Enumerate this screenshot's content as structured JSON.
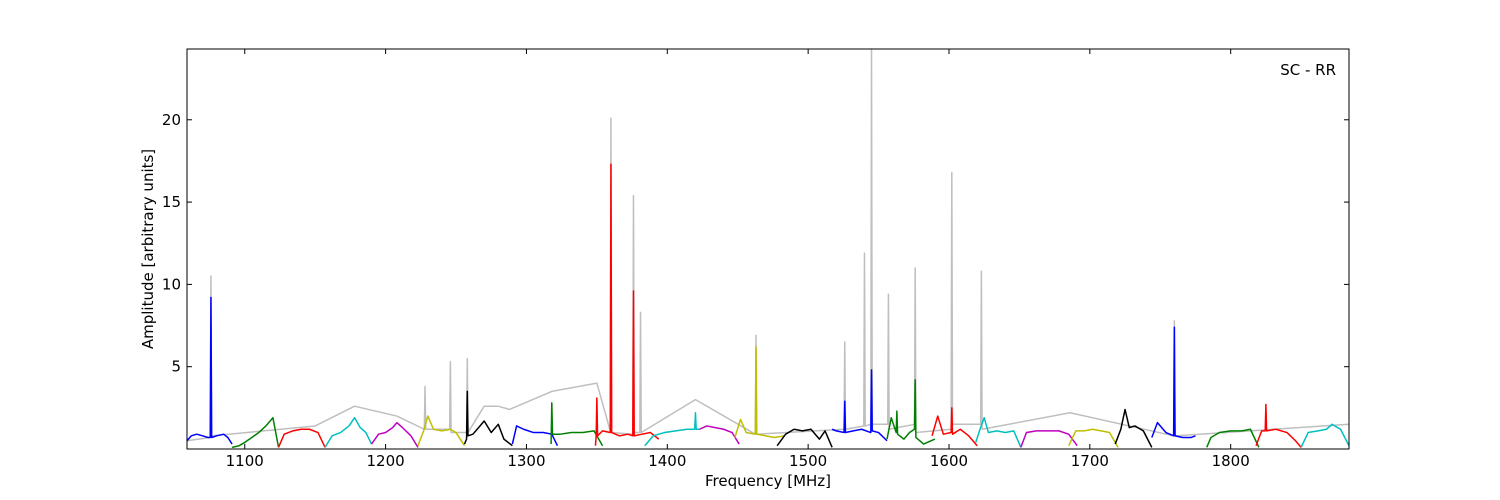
{
  "chart_data": {
    "type": "line",
    "annotation": "SC - RR",
    "x_label": "Frequency [MHz]",
    "y_label": "Amplitude [arbitrary units]",
    "xlim": [
      1059,
      1884
    ],
    "ylim": [
      0,
      24.3
    ],
    "xticks": [
      1100,
      1200,
      1300,
      1400,
      1500,
      1600,
      1700,
      1800
    ],
    "yticks": [
      5,
      10,
      15,
      20
    ],
    "series": [
      {
        "color": "#bfbfbf",
        "x": [
          1059,
          1075.5,
          1076,
          1076.5,
          1150,
          1178,
          1208,
          1227.5,
          1228,
          1228.5,
          1245.5,
          1246,
          1246.5,
          1257.5,
          1258,
          1258.5,
          1270,
          1280,
          1288,
          1318,
          1350,
          1359.5,
          1360,
          1360.5,
          1375.5,
          1376,
          1376.5,
          1380.5,
          1381,
          1381.5,
          1420,
          1462.5,
          1463,
          1463.5,
          1525.5,
          1526,
          1526.5,
          1539.5,
          1540,
          1540.5,
          1544.5,
          1545,
          1545.5,
          1556.5,
          1557,
          1557.5,
          1575.5,
          1576,
          1576.5,
          1601.5,
          1602,
          1602.5,
          1622.5,
          1623,
          1623.5,
          1686,
          1759.5,
          1760,
          1760.5,
          1884
        ],
        "values": [
          0.5,
          0.7,
          10.5,
          0.8,
          1.4,
          2.6,
          2.0,
          1.2,
          3.8,
          1.2,
          1.2,
          5.3,
          1.0,
          1.0,
          5.5,
          1.0,
          2.6,
          2.6,
          2.4,
          3.5,
          4.0,
          1.1,
          20.1,
          1.0,
          0.9,
          15.4,
          1.0,
          1.0,
          8.3,
          1.0,
          3.0,
          0.9,
          6.9,
          0.9,
          1.2,
          6.5,
          1.2,
          1.4,
          11.9,
          1.4,
          1.5,
          24.3,
          1.5,
          1.5,
          9.4,
          1.2,
          1.5,
          11.0,
          1.0,
          1.2,
          16.8,
          1.5,
          1.5,
          10.8,
          1.2,
          2.2,
          0.8,
          7.8,
          0.8,
          1.5
        ]
      },
      {
        "color": "#0000ff",
        "x": [
          1059,
          1062,
          1066,
          1070,
          1074,
          1075.5,
          1076,
          1076.5,
          1080,
          1085,
          1088,
          1091
        ],
        "values": [
          0.5,
          0.8,
          0.9,
          0.8,
          0.7,
          0.7,
          9.2,
          0.7,
          0.8,
          0.9,
          0.7,
          0.3
        ]
      },
      {
        "color": "#008000",
        "x": [
          1091,
          1096,
          1100,
          1105,
          1110,
          1115,
          1120,
          1124
        ],
        "values": [
          0.1,
          0.2,
          0.4,
          0.7,
          1.0,
          1.4,
          1.9,
          0.1
        ]
      },
      {
        "color": "#ff0000",
        "x": [
          1124,
          1128,
          1134,
          1140,
          1146,
          1152,
          1157
        ],
        "values": [
          0.1,
          0.9,
          1.1,
          1.2,
          1.2,
          1.0,
          0.1
        ]
      },
      {
        "color": "#00bfbf",
        "x": [
          1157,
          1162,
          1168,
          1174,
          1178,
          1182,
          1186,
          1190
        ],
        "values": [
          0.1,
          0.8,
          1.0,
          1.4,
          1.9,
          1.3,
          1.0,
          0.3
        ]
      },
      {
        "color": "#bf00bf",
        "x": [
          1190,
          1195,
          1200,
          1205,
          1208,
          1212,
          1218,
          1223
        ],
        "values": [
          0.3,
          0.9,
          1.0,
          1.3,
          1.6,
          1.3,
          0.8,
          0.1
        ]
      },
      {
        "color": "#bfbf00",
        "x": [
          1223,
          1227,
          1230,
          1234,
          1240,
          1246,
          1250,
          1256
        ],
        "values": [
          0.2,
          1.1,
          2.0,
          1.2,
          1.1,
          1.2,
          1.0,
          0.2
        ]
      },
      {
        "color": "#000000",
        "x": [
          1256,
          1257.5,
          1258,
          1258.5,
          1262,
          1266,
          1270,
          1275,
          1280,
          1284,
          1290
        ],
        "values": [
          0.3,
          0.6,
          3.5,
          0.8,
          0.9,
          1.3,
          1.7,
          1.0,
          1.5,
          0.6,
          0.2
        ]
      },
      {
        "color": "#0000ff",
        "x": [
          1290,
          1293,
          1298,
          1305,
          1312,
          1318,
          1322
        ],
        "values": [
          0.3,
          1.4,
          1.2,
          1.0,
          1.0,
          0.9,
          0.2
        ]
      },
      {
        "color": "#008000",
        "x": [
          1317.5,
          1318,
          1318.5,
          1324,
          1332,
          1340,
          1348,
          1354
        ],
        "values": [
          0.3,
          2.8,
          0.9,
          0.9,
          1.0,
          1.0,
          1.1,
          0.2
        ]
      },
      {
        "color": "#ff0000",
        "x": [
          1349,
          1349.5,
          1350,
          1350.5,
          1354,
          1359.5,
          1360,
          1360.5,
          1366,
          1372,
          1375.5,
          1376,
          1376.5,
          1382,
          1388,
          1394
        ],
        "values": [
          0.2,
          0.8,
          3.1,
          0.8,
          1.1,
          1.0,
          17.3,
          1.0,
          0.8,
          0.9,
          0.8,
          9.6,
          0.8,
          0.9,
          1.0,
          0.6
        ]
      },
      {
        "color": "#00bfbf",
        "x": [
          1384,
          1390,
          1398,
          1406,
          1414,
          1419.5,
          1420,
          1420.5,
          1423
        ],
        "values": [
          0.2,
          0.8,
          1.0,
          1.1,
          1.2,
          1.2,
          2.2,
          1.2,
          1.2
        ]
      },
      {
        "color": "#bf00bf",
        "x": [
          1423,
          1428,
          1434,
          1440,
          1446,
          1451
        ],
        "values": [
          1.2,
          1.4,
          1.3,
          1.2,
          1.0,
          0.3
        ]
      },
      {
        "color": "#bfbf00",
        "x": [
          1448,
          1452,
          1456,
          1462.5,
          1463,
          1463.5,
          1470,
          1476,
          1483
        ],
        "values": [
          0.7,
          1.8,
          1.0,
          0.9,
          6.2,
          0.9,
          0.8,
          0.7,
          0.8
        ]
      },
      {
        "color": "#000000",
        "x": [
          1478,
          1484,
          1490,
          1496,
          1502,
          1508,
          1512,
          1517
        ],
        "values": [
          0.2,
          0.9,
          1.2,
          1.1,
          1.2,
          0.6,
          1.1,
          0.1
        ]
      },
      {
        "color": "#0000ff",
        "x": [
          1517,
          1520,
          1525.5,
          1526,
          1526.5,
          1532,
          1538,
          1544.5,
          1545,
          1545.5,
          1550,
          1556
        ],
        "values": [
          1.2,
          1.1,
          1.0,
          2.9,
          1.0,
          1.1,
          1.2,
          1.0,
          4.8,
          1.1,
          1.0,
          0.5
        ]
      },
      {
        "color": "#008000",
        "x": [
          1556,
          1559,
          1562.5,
          1563,
          1563.5,
          1568,
          1572,
          1575.5,
          1576,
          1576.5,
          1582,
          1590
        ],
        "values": [
          0.6,
          1.9,
          1.0,
          2.3,
          0.9,
          0.6,
          1.0,
          1.2,
          4.2,
          0.7,
          0.3,
          0.6
        ]
      },
      {
        "color": "#ff0000",
        "x": [
          1588,
          1592,
          1596,
          1601.5,
          1602,
          1602.5,
          1608,
          1614,
          1620
        ],
        "values": [
          0.8,
          2.0,
          0.9,
          1.0,
          2.5,
          0.9,
          1.2,
          0.8,
          0.2
        ]
      },
      {
        "color": "#00bfbf",
        "x": [
          1619,
          1622,
          1625,
          1628,
          1634,
          1640,
          1646,
          1651
        ],
        "values": [
          0.4,
          1.2,
          1.9,
          1.0,
          1.1,
          1.0,
          1.1,
          0.1
        ]
      },
      {
        "color": "#bf00bf",
        "x": [
          1651,
          1655,
          1662,
          1670,
          1678,
          1685,
          1691
        ],
        "values": [
          0.1,
          1.0,
          1.1,
          1.1,
          1.1,
          0.9,
          0.2
        ]
      },
      {
        "color": "#bfbf00",
        "x": [
          1685,
          1690,
          1696,
          1702,
          1708,
          1714,
          1720
        ],
        "values": [
          0.2,
          1.1,
          1.1,
          1.2,
          1.1,
          1.0,
          0.1
        ]
      },
      {
        "color": "#000000",
        "x": [
          1718,
          1722,
          1725,
          1728,
          1732,
          1738,
          1744
        ],
        "values": [
          0.3,
          1.2,
          2.4,
          1.3,
          1.4,
          1.1,
          0.1
        ]
      },
      {
        "color": "#0000ff",
        "x": [
          1744,
          1748,
          1754,
          1759.5,
          1760,
          1760.5,
          1766,
          1772,
          1775
        ],
        "values": [
          0.7,
          1.6,
          1.0,
          0.8,
          7.4,
          0.8,
          0.7,
          0.7,
          0.8
        ]
      },
      {
        "color": "#008000",
        "x": [
          1783,
          1786,
          1792,
          1800,
          1808,
          1814,
          1820
        ],
        "values": [
          0.1,
          0.7,
          1.0,
          1.1,
          1.1,
          1.2,
          0.1
        ]
      },
      {
        "color": "#ff0000",
        "x": [
          1818,
          1822,
          1824.5,
          1825,
          1825.5,
          1832,
          1840,
          1846,
          1850
        ],
        "values": [
          0.2,
          1.1,
          1.1,
          2.7,
          1.1,
          1.2,
          1.0,
          0.5,
          0.1
        ]
      },
      {
        "color": "#00bfbf",
        "x": [
          1850,
          1855,
          1862,
          1868,
          1872,
          1878,
          1884
        ],
        "values": [
          0.1,
          1.0,
          1.1,
          1.2,
          1.5,
          1.2,
          0.2
        ]
      }
    ]
  }
}
